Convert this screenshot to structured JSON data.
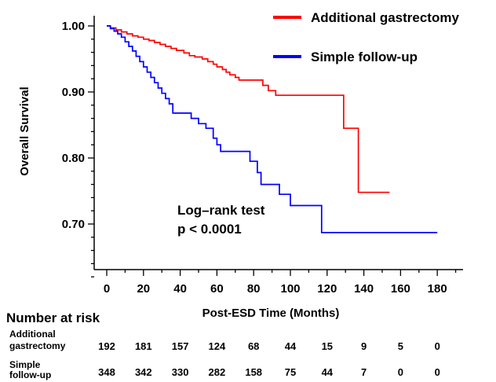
{
  "chart_data": {
    "type": "line",
    "title": "",
    "xlabel": "Post-ESD Time (Months)",
    "ylabel": "Overall Survival",
    "xlim": [
      -6,
      200
    ],
    "ylim": [
      0.6,
      1.02
    ],
    "x_ticks": [
      0,
      20,
      40,
      60,
      80,
      100,
      120,
      140,
      160,
      180
    ],
    "y_ticks": [
      0.7,
      0.8,
      0.9,
      1.0
    ],
    "x_tick_labels": [
      "0",
      "20",
      "40",
      "60",
      "80",
      "100",
      "120",
      "140",
      "160",
      "180"
    ],
    "y_tick_labels": [
      "0.70",
      "0.80",
      "0.90",
      "1.00"
    ],
    "grid": false,
    "legend_position": "top-right",
    "series": [
      {
        "name": "Additional gastrectomy",
        "color": "#ff0000",
        "x": [
          0,
          2,
          5,
          8,
          11,
          14,
          17,
          20,
          23,
          26,
          29,
          32,
          35,
          38,
          42,
          45,
          48,
          52,
          55,
          58,
          60,
          63,
          65,
          67,
          70,
          72,
          76,
          85,
          88,
          92,
          129,
          137,
          154
        ],
        "y": [
          1.0,
          0.997,
          0.994,
          0.991,
          0.988,
          0.985,
          0.983,
          0.98,
          0.978,
          0.975,
          0.972,
          0.969,
          0.966,
          0.963,
          0.959,
          0.955,
          0.953,
          0.95,
          0.946,
          0.942,
          0.938,
          0.934,
          0.93,
          0.926,
          0.922,
          0.918,
          0.918,
          0.91,
          0.902,
          0.895,
          0.845,
          0.748,
          0.748
        ]
      },
      {
        "name": "Simple follow-up",
        "color": "#0000ff",
        "x": [
          0,
          2,
          4,
          6,
          8,
          10,
          12,
          14,
          16,
          18,
          20,
          22,
          24,
          26,
          28,
          30,
          32,
          34,
          36,
          40,
          46,
          50,
          54,
          58,
          60,
          62,
          78,
          82,
          84,
          94,
          100,
          117,
          180
        ],
        "y": [
          1.0,
          0.996,
          0.992,
          0.988,
          0.983,
          0.976,
          0.969,
          0.962,
          0.954,
          0.946,
          0.938,
          0.93,
          0.922,
          0.914,
          0.906,
          0.898,
          0.89,
          0.882,
          0.868,
          0.868,
          0.86,
          0.852,
          0.845,
          0.83,
          0.82,
          0.81,
          0.795,
          0.778,
          0.76,
          0.745,
          0.728,
          0.687,
          0.687
        ]
      }
    ],
    "annotations": [
      "Log–rank test",
      "p < 0.0001"
    ]
  },
  "risk_table": {
    "title": "Number at risk",
    "times": [
      0,
      20,
      40,
      60,
      80,
      100,
      120,
      140,
      160,
      180
    ],
    "rows": [
      {
        "label_lines": [
          "Additional",
          "gastrectomy"
        ],
        "values": [
          "192",
          "181",
          "157",
          "124",
          "68",
          "44",
          "15",
          "9",
          "5",
          "0"
        ]
      },
      {
        "label_lines": [
          "Simple",
          "follow-up"
        ],
        "values": [
          "348",
          "342",
          "330",
          "282",
          "158",
          "75",
          "44",
          "7",
          "0",
          "0"
        ]
      }
    ]
  }
}
